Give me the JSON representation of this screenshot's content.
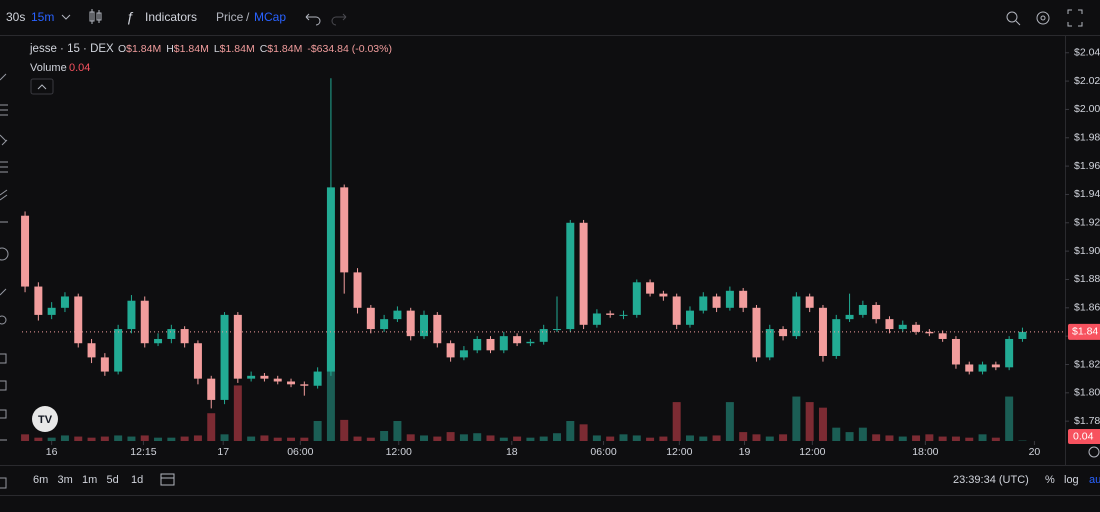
{
  "toolbar": {
    "intervals": [
      "30s",
      "15m"
    ],
    "indicators": "Indicators",
    "price": "Price",
    "sep": "/",
    "mcap": "MCap"
  },
  "chart_data": {
    "type": "candlestick",
    "symbol": "jesse · 15 · DEX",
    "legend": [
      {
        "key": "O",
        "value": "$1.84M"
      },
      {
        "key": "H",
        "value": "$1.84M"
      },
      {
        "key": "L",
        "value": "$1.84M"
      },
      {
        "key": "C",
        "value": "$1.84M"
      }
    ],
    "change": "-$634.84 (-0.03%)",
    "open": [
      1.925,
      1.875,
      1.855,
      1.86,
      1.868,
      1.835,
      1.825,
      1.815,
      1.845,
      1.865,
      1.835,
      1.838,
      1.845,
      1.835,
      1.81,
      1.795,
      1.855,
      1.81,
      1.812,
      1.81,
      1.808,
      1.806,
      1.805,
      1.815,
      1.945,
      1.885,
      1.86,
      1.845,
      1.852,
      1.858,
      1.84,
      1.855,
      1.835,
      1.825,
      1.83,
      1.838,
      1.83,
      1.84,
      1.835,
      1.836,
      1.845,
      1.845,
      1.92,
      1.848,
      1.856,
      1.855,
      1.855,
      1.878,
      1.87,
      1.868,
      1.848,
      1.858,
      1.868,
      1.86,
      1.872,
      1.86,
      1.825,
      1.845,
      1.84,
      1.868,
      1.86,
      1.826,
      1.852,
      1.855,
      1.862,
      1.852,
      1.845,
      1.848,
      1.843,
      1.842,
      1.838,
      1.82,
      1.815,
      1.82,
      1.818,
      1.838
    ],
    "high": [
      1.928,
      1.878,
      1.864,
      1.871,
      1.87,
      1.838,
      1.828,
      1.848,
      1.869,
      1.868,
      1.842,
      1.848,
      1.847,
      1.837,
      1.812,
      1.857,
      1.857,
      1.815,
      1.814,
      1.812,
      1.81,
      1.808,
      1.818,
      2.022,
      1.947,
      1.888,
      1.862,
      1.855,
      1.861,
      1.86,
      1.858,
      1.857,
      1.837,
      1.833,
      1.84,
      1.84,
      1.843,
      1.842,
      1.838,
      1.848,
      1.868,
      1.922,
      1.922,
      1.859,
      1.858,
      1.858,
      1.88,
      1.88,
      1.872,
      1.87,
      1.861,
      1.871,
      1.87,
      1.875,
      1.874,
      1.862,
      1.848,
      1.847,
      1.871,
      1.87,
      1.862,
      1.855,
      1.87,
      1.865,
      1.864,
      1.854,
      1.851,
      1.85,
      1.845,
      1.844,
      1.84,
      1.822,
      1.822,
      1.822,
      1.84,
      1.846
    ],
    "low": [
      1.871,
      1.851,
      1.852,
      1.857,
      1.832,
      1.821,
      1.812,
      1.813,
      1.842,
      1.832,
      1.833,
      1.835,
      1.832,
      1.806,
      1.789,
      1.792,
      1.807,
      1.808,
      1.808,
      1.806,
      1.804,
      1.798,
      1.803,
      1.812,
      1.87,
      1.856,
      1.842,
      1.843,
      1.85,
      1.837,
      1.838,
      1.832,
      1.822,
      1.823,
      1.828,
      1.828,
      1.828,
      1.833,
      1.833,
      1.834,
      1.843,
      1.843,
      1.845,
      1.846,
      1.853,
      1.852,
      1.853,
      1.868,
      1.865,
      1.845,
      1.846,
      1.856,
      1.857,
      1.858,
      1.857,
      1.822,
      1.823,
      1.837,
      1.838,
      1.857,
      1.822,
      1.824,
      1.85,
      1.853,
      1.849,
      1.842,
      1.843,
      1.841,
      1.84,
      1.836,
      1.817,
      1.813,
      1.813,
      1.816,
      1.816,
      1.836
    ],
    "close": [
      1.875,
      1.855,
      1.86,
      1.868,
      1.835,
      1.825,
      1.815,
      1.845,
      1.865,
      1.835,
      1.838,
      1.845,
      1.835,
      1.81,
      1.795,
      1.855,
      1.81,
      1.812,
      1.81,
      1.808,
      1.806,
      1.805,
      1.815,
      1.945,
      1.885,
      1.86,
      1.845,
      1.852,
      1.858,
      1.84,
      1.855,
      1.835,
      1.825,
      1.83,
      1.838,
      1.83,
      1.84,
      1.835,
      1.836,
      1.845,
      1.845,
      1.92,
      1.848,
      1.856,
      1.855,
      1.855,
      1.878,
      1.87,
      1.868,
      1.848,
      1.858,
      1.868,
      1.86,
      1.872,
      1.86,
      1.825,
      1.845,
      1.84,
      1.868,
      1.86,
      1.826,
      1.852,
      1.855,
      1.862,
      1.852,
      1.845,
      1.848,
      1.843,
      1.842,
      1.838,
      1.82,
      1.815,
      1.82,
      1.818,
      1.838,
      1.843
    ],
    "up_color": "#22ab94",
    "down_color": "#f29d9d",
    "volume": {
      "name": "Volume",
      "values": [
        0.6,
        0.3,
        0.3,
        0.5,
        0.4,
        0.3,
        0.4,
        0.5,
        0.4,
        0.5,
        0.3,
        0.3,
        0.4,
        0.5,
        2.5,
        0.6,
        5,
        0.4,
        0.5,
        0.3,
        0.3,
        0.3,
        1.8,
        9,
        1.9,
        0.4,
        0.3,
        0.9,
        1.8,
        0.6,
        0.5,
        0.4,
        0.8,
        0.6,
        0.7,
        0.5,
        0.3,
        0.4,
        0.3,
        0.4,
        0.7,
        1.8,
        1.5,
        0.5,
        0.4,
        0.6,
        0.5,
        0.3,
        0.4,
        3.5,
        0.5,
        0.4,
        0.5,
        3.5,
        0.8,
        0.6,
        0.4,
        0.6,
        4,
        3.5,
        3,
        1.2,
        0.8,
        1.2,
        0.6,
        0.5,
        0.4,
        0.5,
        0.6,
        0.4,
        0.4,
        0.3,
        0.6,
        0.3,
        4,
        0.04
      ],
      "up_color": "#1b5e55",
      "down_color": "#7c2b33"
    },
    "ylim": [
      1.766,
      2.049
    ],
    "yticks": [
      {
        "value": 2.04,
        "label": "$2.04"
      },
      {
        "value": 2.02,
        "label": "$2.02"
      },
      {
        "value": 2.0,
        "label": "$2.00"
      },
      {
        "value": 1.98,
        "label": "$1.98"
      },
      {
        "value": 1.96,
        "label": "$1.96"
      },
      {
        "value": 1.94,
        "label": "$1.94"
      },
      {
        "value": 1.92,
        "label": "$1.92"
      },
      {
        "value": 1.9,
        "label": "$1.90"
      },
      {
        "value": 1.88,
        "label": "$1.88"
      },
      {
        "value": 1.86,
        "label": "$1.86"
      },
      {
        "value": 1.84,
        "label": "$1.84"
      },
      {
        "value": 1.82,
        "label": "$1.82"
      },
      {
        "value": 1.8,
        "label": "$1.80"
      },
      {
        "value": 1.78,
        "label": "$1.78"
      }
    ],
    "xlim": [
      -0.23,
      78.2
    ],
    "xticks": [
      {
        "value": 2,
        "label": "16"
      },
      {
        "value": 8.9,
        "label": "12:15"
      },
      {
        "value": 14.9,
        "label": "17"
      },
      {
        "value": 20.7,
        "label": "06:00"
      },
      {
        "value": 28.1,
        "label": "12:00"
      },
      {
        "value": 36.6,
        "label": "18"
      },
      {
        "value": 43.5,
        "label": "06:00"
      },
      {
        "value": 49.2,
        "label": "12:00"
      },
      {
        "value": 54.1,
        "label": "19"
      },
      {
        "value": 59.2,
        "label": "12:00"
      },
      {
        "value": 67.7,
        "label": "18:00"
      },
      {
        "value": 75.9,
        "label": "20"
      }
    ],
    "last_price_label": "$1.84"
  },
  "bottom": {
    "ranges": [
      "6m",
      "3m",
      "1m",
      "5d",
      "1d"
    ],
    "clock": "23:39:34 (UTC)",
    "percent": "%",
    "log": "log",
    "auto": "au"
  }
}
